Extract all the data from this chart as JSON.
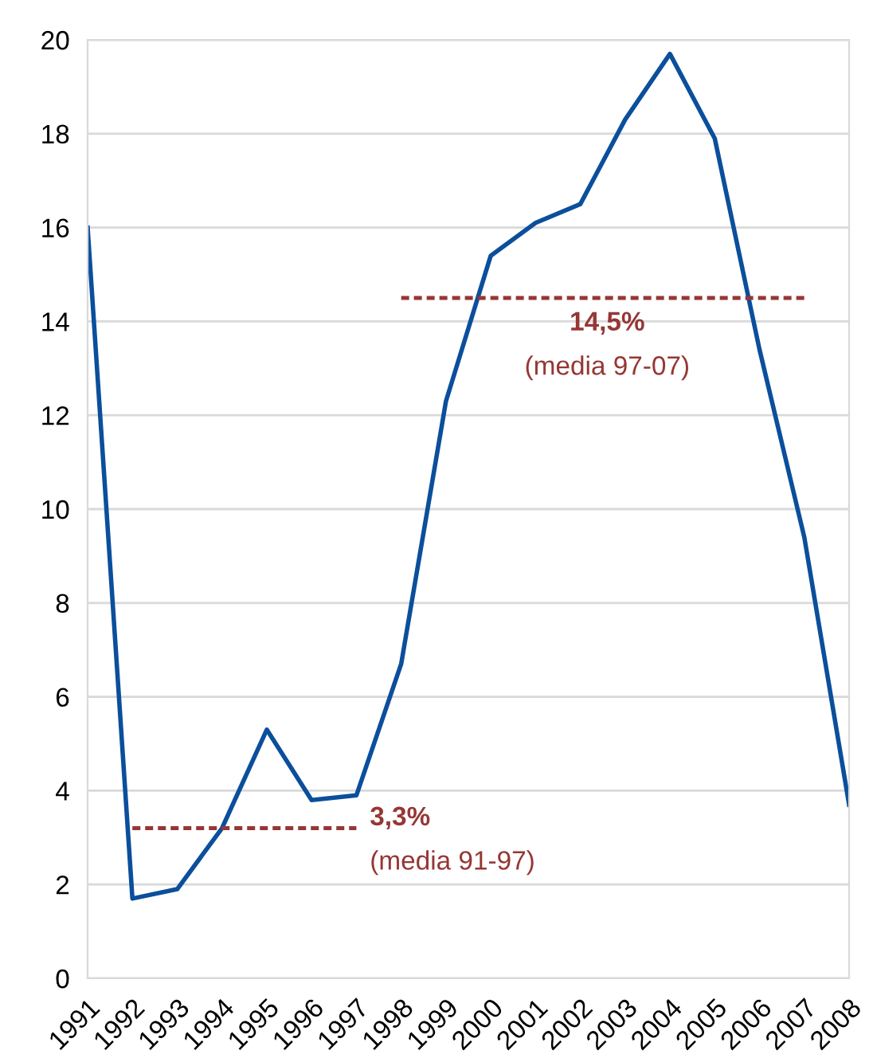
{
  "chart_data": {
    "type": "line",
    "x": [
      1991,
      1992,
      1993,
      1994,
      1995,
      1996,
      1997,
      1998,
      1999,
      2000,
      2001,
      2002,
      2003,
      2004,
      2005,
      2006,
      2007,
      2008
    ],
    "series": [
      {
        "color": "#0b4f9c",
        "values": [
          16.0,
          1.7,
          1.9,
          3.2,
          5.3,
          3.8,
          3.9,
          6.7,
          12.3,
          15.4,
          16.1,
          16.5,
          18.3,
          19.7,
          17.9,
          13.4,
          9.4,
          3.7
        ]
      },
      {
        "color": "#953735",
        "line_style": "dotted",
        "x": [
          1992,
          1997
        ],
        "values": [
          3.2,
          3.2
        ]
      },
      {
        "color": "#953735",
        "line_style": "dotted",
        "x": [
          1998,
          2007
        ],
        "values": [
          14.5,
          14.5
        ]
      }
    ],
    "annotations": [
      "3,3%",
      "(media 91-97)",
      "14,5%",
      "(media 97-07)"
    ],
    "xlim": [
      1991,
      2008
    ],
    "xticks": [
      1991,
      1992,
      1993,
      1994,
      1995,
      1996,
      1997,
      1998,
      1999,
      2000,
      2001,
      2002,
      2003,
      2004,
      2005,
      2006,
      2007,
      2008
    ],
    "ylim": [
      0,
      20
    ],
    "yticks": [
      0,
      2,
      4,
      6,
      8,
      10,
      12,
      14,
      16,
      18,
      20
    ],
    "grid": "y",
    "marker": "none",
    "line_style": "solid"
  }
}
